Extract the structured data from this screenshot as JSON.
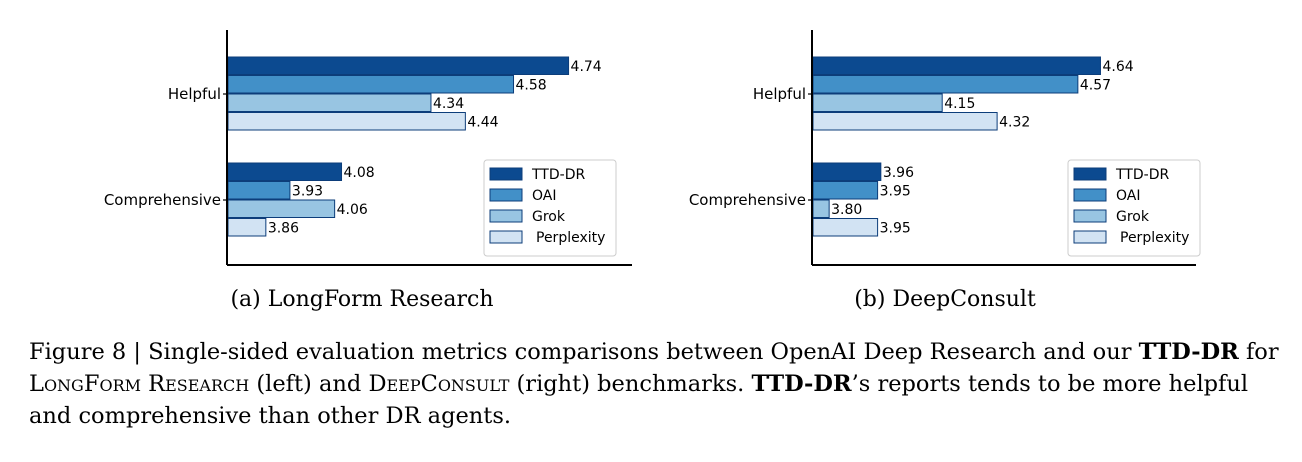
{
  "chart_data": [
    {
      "type": "bar",
      "orientation": "horizontal",
      "subcaption": "(a) LongForm Research",
      "categories": [
        "Helpful",
        "Comprehensive"
      ],
      "series": [
        {
          "name": "TTD-DR",
          "values": [
            4.74,
            4.08
          ],
          "color": "#0c4a90"
        },
        {
          "name": "OAI",
          "values": [
            4.58,
            3.93
          ],
          "color": "#4290c8"
        },
        {
          "name": "Grok",
          "values": [
            4.34,
            4.06
          ],
          "color": "#98c5e2"
        },
        {
          "name": "Perplexity",
          "values": [
            4.44,
            3.86
          ],
          "color": "#d2e3f3"
        }
      ],
      "data_labels": [
        [
          "4.74",
          "4.58",
          "4.34",
          "4.44"
        ],
        [
          "4.08",
          "3.93",
          "4.06",
          "3.86"
        ]
      ],
      "xlim": [
        3.5,
        5.0
      ],
      "legend": "lower-right",
      "grid": false
    },
    {
      "type": "bar",
      "orientation": "horizontal",
      "subcaption": "(b) DeepConsult",
      "categories": [
        "Helpful",
        "Comprehensive"
      ],
      "series": [
        {
          "name": "TTD-DR",
          "values": [
            4.64,
            3.96
          ],
          "color": "#0c4a90"
        },
        {
          "name": "OAI",
          "values": [
            4.57,
            3.95
          ],
          "color": "#4290c8"
        },
        {
          "name": "Grok",
          "values": [
            4.15,
            3.8
          ],
          "color": "#98c5e2"
        },
        {
          "name": "Perplexity",
          "values": [
            4.32,
            3.95
          ],
          "color": "#d2e3f3"
        }
      ],
      "data_labels": [
        [
          "4.64",
          "4.57",
          "4.15",
          "4.32"
        ],
        [
          "3.96",
          "3.95",
          "3.80",
          "3.95"
        ]
      ],
      "xlim": [
        3.4,
        5.0
      ],
      "legend": "lower-right",
      "grid": false
    }
  ],
  "caption": {
    "prefix": "Figure 8 | Single-sided evaluation metrics comparisons between OpenAI Deep Research and our",
    "model_bold": "TTD-DR",
    "for_text": "for",
    "bench1": "LongForm Research",
    "left_text": "(left) and",
    "bench2": "DeepConsult",
    "right_text": "(right) benchmarks.",
    "model_bold_2": "TTD-DR",
    "suffix": "’s reports tends to be more helpful and comprehensive than other DR agents."
  }
}
